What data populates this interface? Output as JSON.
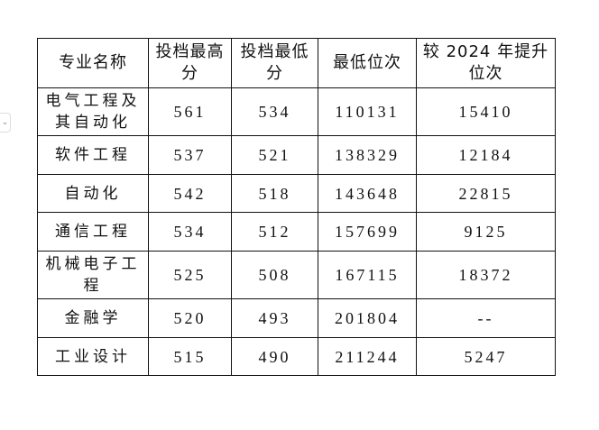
{
  "headers": [
    "专业名称",
    "投档最高分",
    "投档最低分",
    "最低位次",
    "较 2024 年提升位次"
  ],
  "rows": [
    [
      "电气工程及其自动化",
      "561",
      "534",
      "110131",
      "15410"
    ],
    [
      "软件工程",
      "537",
      "521",
      "138329",
      "12184"
    ],
    [
      "自动化",
      "542",
      "518",
      "143648",
      "22815"
    ],
    [
      "通信工程",
      "534",
      "512",
      "157699",
      "9125"
    ],
    [
      "机械电子工程",
      "525",
      "508",
      "167115",
      "18372"
    ],
    [
      "金融学",
      "520",
      "493",
      "201804",
      "--"
    ],
    [
      "工业设计",
      "515",
      "490",
      "211244",
      "5247"
    ]
  ]
}
